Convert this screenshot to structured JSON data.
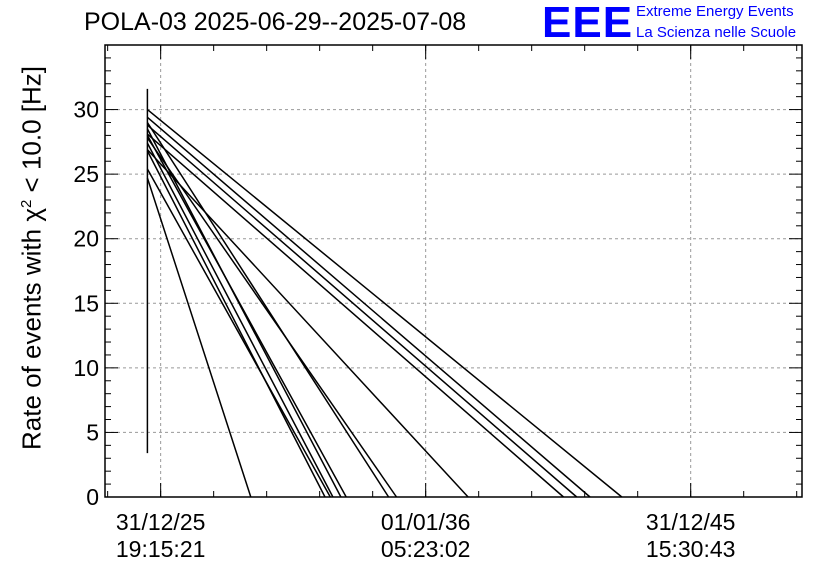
{
  "chart_data": {
    "type": "line",
    "title": "POLA-03 2025-06-29--2025-07-08",
    "ylabel_prefix": "Rate of events with ",
    "ylabel_symbol": "χ",
    "ylabel_sup": "2",
    "ylabel_suffix": " < 10.0 [Hz]",
    "ylim": [
      0,
      35
    ],
    "y_ticks": [
      "0",
      "5",
      "10",
      "15",
      "20",
      "25",
      "30"
    ],
    "y_tick_values": [
      0,
      5,
      10,
      15,
      20,
      25,
      30
    ],
    "x_ticks": [
      {
        "date": "31/12/25",
        "time": "19:15:21"
      },
      {
        "date": "01/01/36",
        "time": "05:23:02"
      },
      {
        "date": "31/12/45",
        "time": "15:30:43"
      }
    ],
    "xlim": [
      2024.5,
      2050.8
    ],
    "x_tick_values": [
      2026.6,
      2036.6,
      2046.6
    ],
    "grid": true,
    "series": [
      {
        "values": [
          [
            2026.1,
            31.6
          ],
          [
            2026.1,
            3.4
          ]
        ]
      },
      {
        "values": [
          [
            2026.1,
            30.0
          ],
          [
            2044.0,
            0
          ]
        ]
      },
      {
        "values": [
          [
            2026.1,
            29.4
          ],
          [
            2042.8,
            0
          ]
        ]
      },
      {
        "values": [
          [
            2026.1,
            28.8
          ],
          [
            2042.3,
            0
          ]
        ]
      },
      {
        "values": [
          [
            2026.1,
            28.1
          ],
          [
            2041.8,
            0
          ]
        ]
      },
      {
        "values": [
          [
            2026.1,
            26.9
          ],
          [
            2038.2,
            0
          ]
        ]
      },
      {
        "values": [
          [
            2026.1,
            27.8
          ],
          [
            2035.5,
            0
          ]
        ]
      },
      {
        "values": [
          [
            2026.1,
            29.0
          ],
          [
            2035.2,
            0
          ]
        ]
      },
      {
        "values": [
          [
            2026.1,
            28.5
          ],
          [
            2033.4,
            0
          ]
        ]
      },
      {
        "values": [
          [
            2026.1,
            28.0
          ],
          [
            2033.6,
            0
          ]
        ]
      },
      {
        "values": [
          [
            2026.1,
            27.4
          ],
          [
            2033.1,
            0
          ]
        ]
      },
      {
        "values": [
          [
            2026.1,
            26.8
          ],
          [
            2032.8,
            0
          ]
        ]
      },
      {
        "values": [
          [
            2026.1,
            25.4
          ],
          [
            2033.0,
            0
          ]
        ]
      },
      {
        "values": [
          [
            2026.1,
            24.7
          ],
          [
            2030.0,
            0
          ]
        ]
      }
    ]
  },
  "logo": {
    "text": "EEE",
    "line1": "Extreme Energy Events",
    "line2": "La Scienza nelle Scuole"
  },
  "colors": {
    "logo": "#0000ff",
    "grid": "#999999",
    "series": "#000000"
  }
}
